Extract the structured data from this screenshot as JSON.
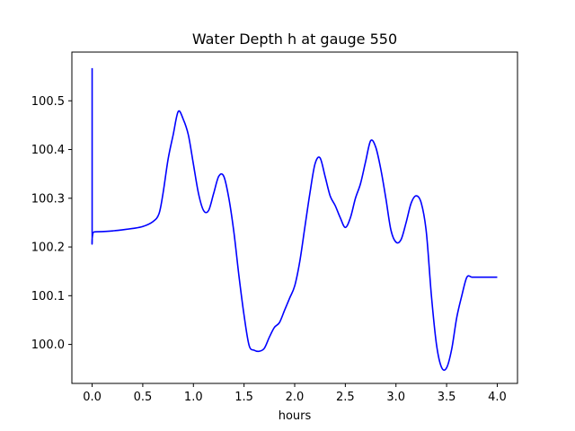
{
  "chart_data": {
    "type": "line",
    "title": "Water Depth h at gauge 550",
    "xlabel": "hours",
    "ylabel": "",
    "xlim": [
      -0.2,
      4.2
    ],
    "ylim": [
      99.92,
      100.6
    ],
    "xticks": [
      0.0,
      0.5,
      1.0,
      1.5,
      2.0,
      2.5,
      3.0,
      3.5,
      4.0
    ],
    "xtick_labels": [
      "0.0",
      "0.5",
      "1.0",
      "1.5",
      "2.0",
      "2.5",
      "3.0",
      "3.5",
      "4.0"
    ],
    "yticks": [
      100.0,
      100.1,
      100.2,
      100.3,
      100.4,
      100.5
    ],
    "ytick_labels": [
      "100.0",
      "100.1",
      "100.2",
      "100.3",
      "100.4",
      "100.5"
    ],
    "grid": false,
    "color": "#0000ff",
    "series": [
      {
        "name": "",
        "x": [
          0.0,
          0.0,
          0.02,
          0.2,
          0.4,
          0.5,
          0.6,
          0.66,
          0.7,
          0.75,
          0.8,
          0.85,
          0.9,
          0.95,
          1.0,
          1.05,
          1.1,
          1.15,
          1.2,
          1.25,
          1.3,
          1.35,
          1.4,
          1.45,
          1.5,
          1.55,
          1.6,
          1.65,
          1.7,
          1.75,
          1.8,
          1.85,
          1.9,
          1.95,
          2.0,
          2.05,
          2.1,
          2.15,
          2.2,
          2.25,
          2.3,
          2.35,
          2.4,
          2.45,
          2.5,
          2.55,
          2.6,
          2.65,
          2.7,
          2.75,
          2.8,
          2.85,
          2.9,
          2.95,
          3.0,
          3.05,
          3.1,
          3.15,
          3.2,
          3.25,
          3.3,
          3.35,
          3.4,
          3.45,
          3.5,
          3.55,
          3.6,
          3.65,
          3.7,
          3.75,
          3.8,
          3.85,
          3.9,
          3.95,
          4.0
        ],
        "y": [
          100.567,
          100.231,
          100.231,
          100.233,
          100.238,
          100.242,
          100.252,
          100.268,
          100.31,
          100.38,
          100.43,
          100.478,
          100.462,
          100.43,
          100.37,
          100.31,
          100.275,
          100.275,
          100.31,
          100.345,
          100.345,
          100.3,
          100.23,
          100.14,
          100.06,
          99.998,
          99.988,
          99.986,
          99.992,
          100.015,
          100.035,
          100.045,
          100.07,
          100.095,
          100.12,
          100.17,
          100.24,
          100.31,
          100.37,
          100.383,
          100.345,
          100.305,
          100.285,
          100.26,
          100.24,
          100.26,
          100.3,
          100.33,
          100.375,
          100.418,
          100.405,
          100.36,
          100.3,
          100.235,
          100.21,
          100.215,
          100.25,
          100.29,
          100.305,
          100.29,
          100.23,
          100.1,
          100.0,
          99.953,
          99.952,
          99.99,
          100.055,
          100.1,
          100.138,
          100.138,
          100.138,
          100.138,
          100.138,
          100.138,
          100.138
        ]
      }
    ]
  }
}
